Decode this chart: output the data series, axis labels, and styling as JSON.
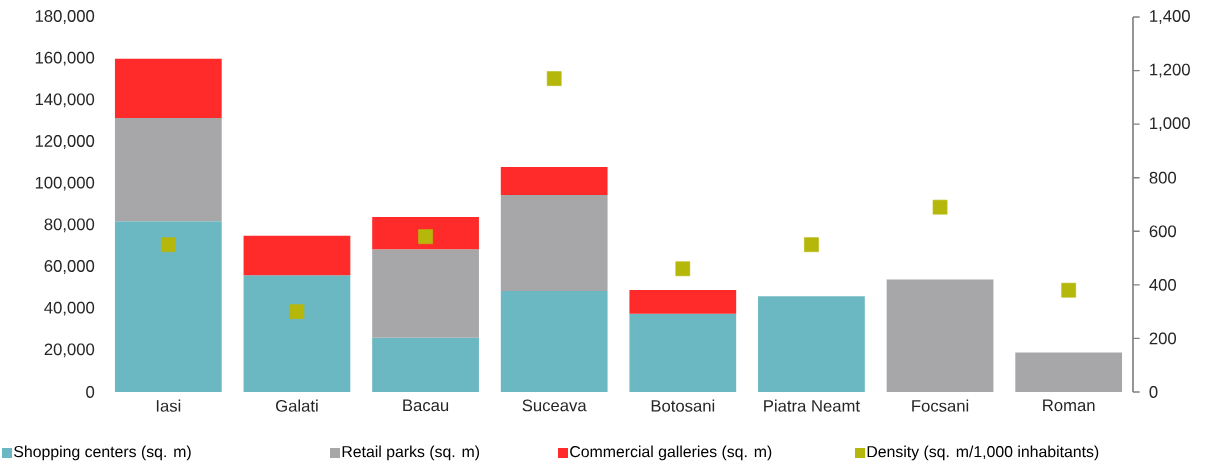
{
  "chart_data": {
    "type": "bar",
    "stacked": true,
    "legend": "bottom",
    "categories": [
      "Iasi",
      "Galati",
      "Bacau",
      "Suceava",
      "Botosani",
      "Piatra Neamt",
      "Focsani",
      "Roman"
    ],
    "series": [
      {
        "name": "Shopping centers (sq. m)",
        "color": "#6cb8c2",
        "values": [
          82000,
          56000,
          26000,
          48500,
          37500,
          46000,
          null,
          null
        ]
      },
      {
        "name": "Retail parks (sq. m)",
        "color": "#a7a7a9",
        "values": [
          49500,
          null,
          42500,
          46000,
          null,
          null,
          54000,
          19000
        ]
      },
      {
        "name": "Commercial galleries (sq. m)",
        "color": "#ff2b2b",
        "values": [
          28500,
          19000,
          15500,
          13500,
          11500,
          null,
          null,
          null
        ]
      },
      {
        "name": "Density (sq. m/1,000 inhabitants)",
        "color": "#b5b80b",
        "type": "scatter",
        "axis": "y2",
        "marker": "square",
        "values": [
          550,
          300,
          580,
          1170,
          460,
          550,
          690,
          380
        ]
      }
    ],
    "ylim": [
      0,
      180000
    ],
    "yticks": [
      0,
      {
        "value": 20000,
        "label": "20,000"
      },
      {
        "value": 40000,
        "label": "40,000"
      },
      {
        "value": 60000,
        "label": "60,000"
      },
      {
        "value": 80000,
        "label": "80,000"
      },
      {
        "value": 100000,
        "label": "100,000"
      },
      {
        "value": 120000,
        "label": "120,000"
      },
      {
        "value": 140000,
        "label": "140,000"
      },
      {
        "value": 160000,
        "label": "160,000"
      },
      {
        "value": 180000,
        "label": "180,000"
      }
    ],
    "y2lim": [
      0,
      1400
    ],
    "y2ticks": [
      0,
      200,
      400,
      600,
      800,
      {
        "value": 1000,
        "label": "1,000"
      },
      {
        "value": 1200,
        "label": "1,200"
      },
      {
        "value": 1400,
        "label": "1,400"
      }
    ]
  }
}
